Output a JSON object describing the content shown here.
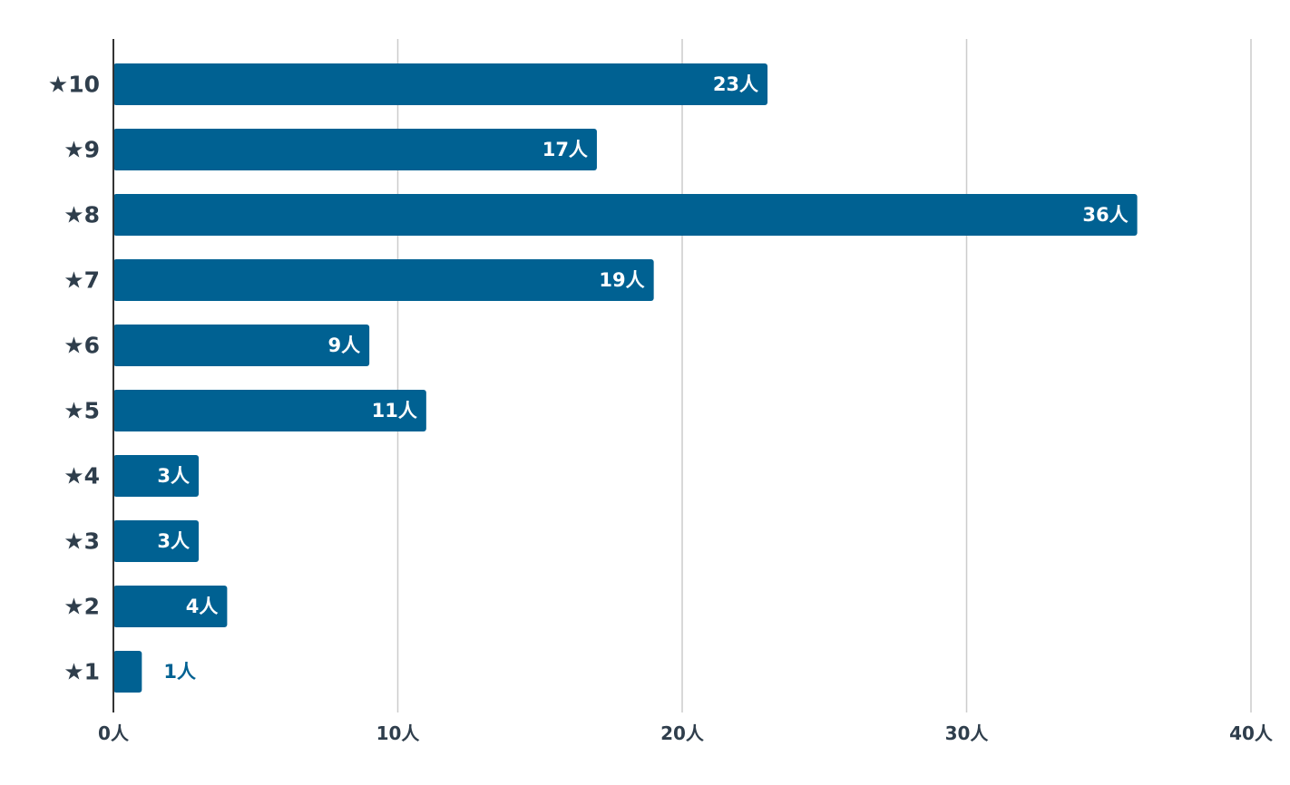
{
  "chart_data": {
    "type": "bar",
    "orientation": "horizontal",
    "categories": [
      "★10",
      "★9",
      "★8",
      "★7",
      "★6",
      "★5",
      "★4",
      "★3",
      "★2",
      "★1"
    ],
    "values": [
      23,
      17,
      36,
      19,
      9,
      11,
      3,
      3,
      4,
      1
    ],
    "value_labels": [
      "23人",
      "17人",
      "36人",
      "19人",
      "9人",
      "11人",
      "3人",
      "3人",
      "4人",
      "1人"
    ],
    "x_ticks": [
      0,
      10,
      20,
      30,
      40
    ],
    "x_tick_labels": [
      "0人",
      "10人",
      "20人",
      "30人",
      "40人"
    ],
    "xlim": [
      0,
      40
    ],
    "grid": true,
    "legend": "none",
    "bar_color": "#006192",
    "grid_color": "#cccccc",
    "axis_color": "#333333"
  }
}
